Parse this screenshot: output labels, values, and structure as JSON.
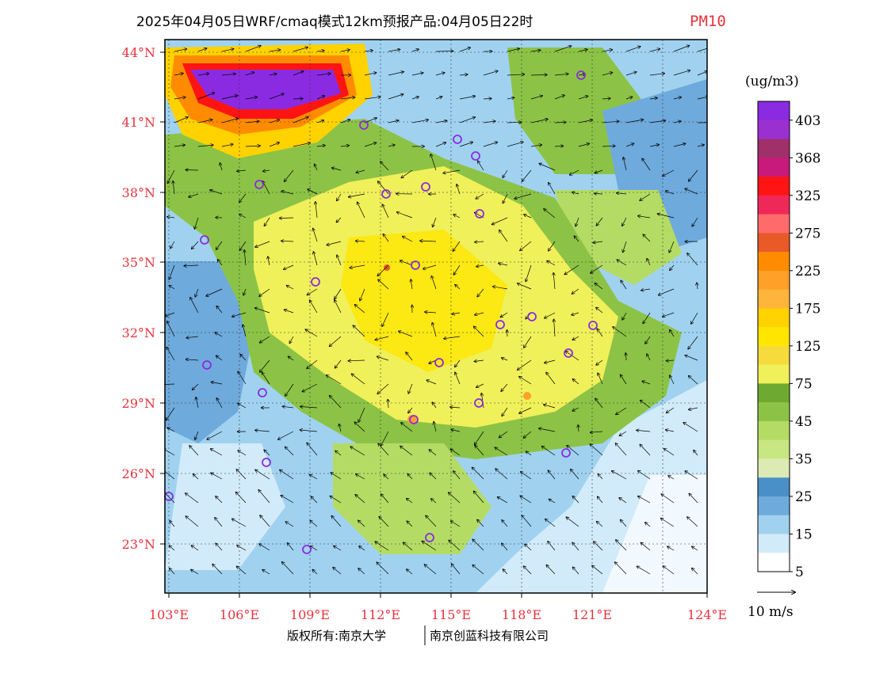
{
  "header": {
    "title": "2025年04月05日WRF/cmaq模式12km预报产品:04月05日22时",
    "variable": "PM10"
  },
  "axes": {
    "lat_ticks": [
      "44°N",
      "41°N",
      "38°N",
      "35°N",
      "32°N",
      "29°N",
      "26°N",
      "23°N"
    ],
    "lon_ticks": [
      "103°E",
      "106°E",
      "109°E",
      "112°E",
      "115°E",
      "118°E",
      "121°E",
      "124°E"
    ]
  },
  "legend": {
    "unit": "(ug/m3)",
    "labels": [
      "403",
      "368",
      "325",
      "275",
      "225",
      "175",
      "125",
      "75",
      "45",
      "35",
      "25",
      "15",
      "5"
    ],
    "colors": [
      "#8a2be2",
      "#9b30d0",
      "#a0306a",
      "#c81a7a",
      "#ff1414",
      "#f0285a",
      "#ff6a6a",
      "#e85a28",
      "#ff8c00",
      "#ffa028",
      "#ffb43c",
      "#ffd200",
      "#ffe600",
      "#f5dc3c",
      "#f0f05a",
      "#6eaa32",
      "#8cc346",
      "#b4dc64",
      "#c8e682",
      "#dcebb4",
      "#4a90c8",
      "#6eaadc",
      "#a0d2f0",
      "#d2ebfa",
      "#ffffff"
    ],
    "wind_ref_label": "10 m/s"
  },
  "footer": {
    "copyright": "版权所有:南京大学",
    "company": "南京创蓝科技有限公司"
  }
}
